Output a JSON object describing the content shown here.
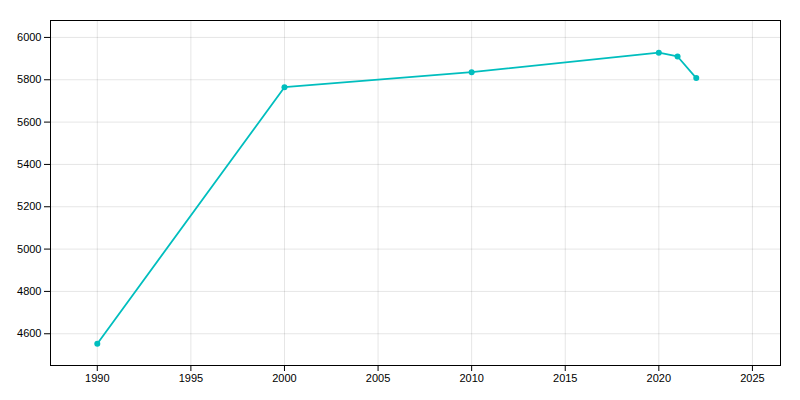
{
  "chart_data": {
    "type": "line",
    "x": [
      1990,
      2000,
      2010,
      2020,
      2021,
      2022
    ],
    "values": [
      4553,
      5765,
      5836,
      5928,
      5910,
      5808
    ],
    "color": "#00BEBE",
    "marker": "circle",
    "xlim": [
      1987.5,
      2026.5
    ],
    "ylim": [
      4450,
      6080
    ],
    "xticks": [
      1990,
      1995,
      2000,
      2005,
      2010,
      2015,
      2020,
      2025
    ],
    "yticks": [
      4600,
      4800,
      5000,
      5200,
      5400,
      5600,
      5800,
      6000
    ],
    "grid": true
  }
}
